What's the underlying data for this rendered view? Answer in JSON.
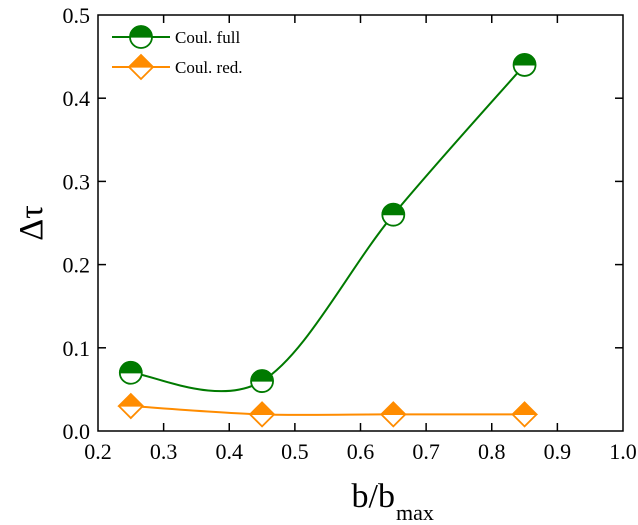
{
  "chart_data": {
    "type": "line",
    "xlabel": "b/b",
    "xlabel_sub": "max",
    "ylabel": "Δτ",
    "xlim": [
      0.2,
      1.0
    ],
    "ylim": [
      0.0,
      0.5
    ],
    "xticks": [
      "0.2",
      "0.3",
      "0.4",
      "0.5",
      "0.6",
      "0.7",
      "0.8",
      "0.9",
      "1.0"
    ],
    "yticks": [
      "0.0",
      "0.1",
      "0.2",
      "0.3",
      "0.4",
      "0.5"
    ],
    "grid": false,
    "legend_position": "top-left",
    "series": [
      {
        "name": "Coul. full",
        "marker": "half-filled-circle",
        "color": "#007a00",
        "x": [
          0.25,
          0.45,
          0.65,
          0.85
        ],
        "y": [
          0.07,
          0.06,
          0.26,
          0.44
        ]
      },
      {
        "name": "Coul. red.",
        "marker": "half-filled-diamond",
        "color": "#ff8c00",
        "x": [
          0.25,
          0.45,
          0.65,
          0.85
        ],
        "y": [
          0.03,
          0.02,
          0.02,
          0.02
        ]
      }
    ]
  }
}
